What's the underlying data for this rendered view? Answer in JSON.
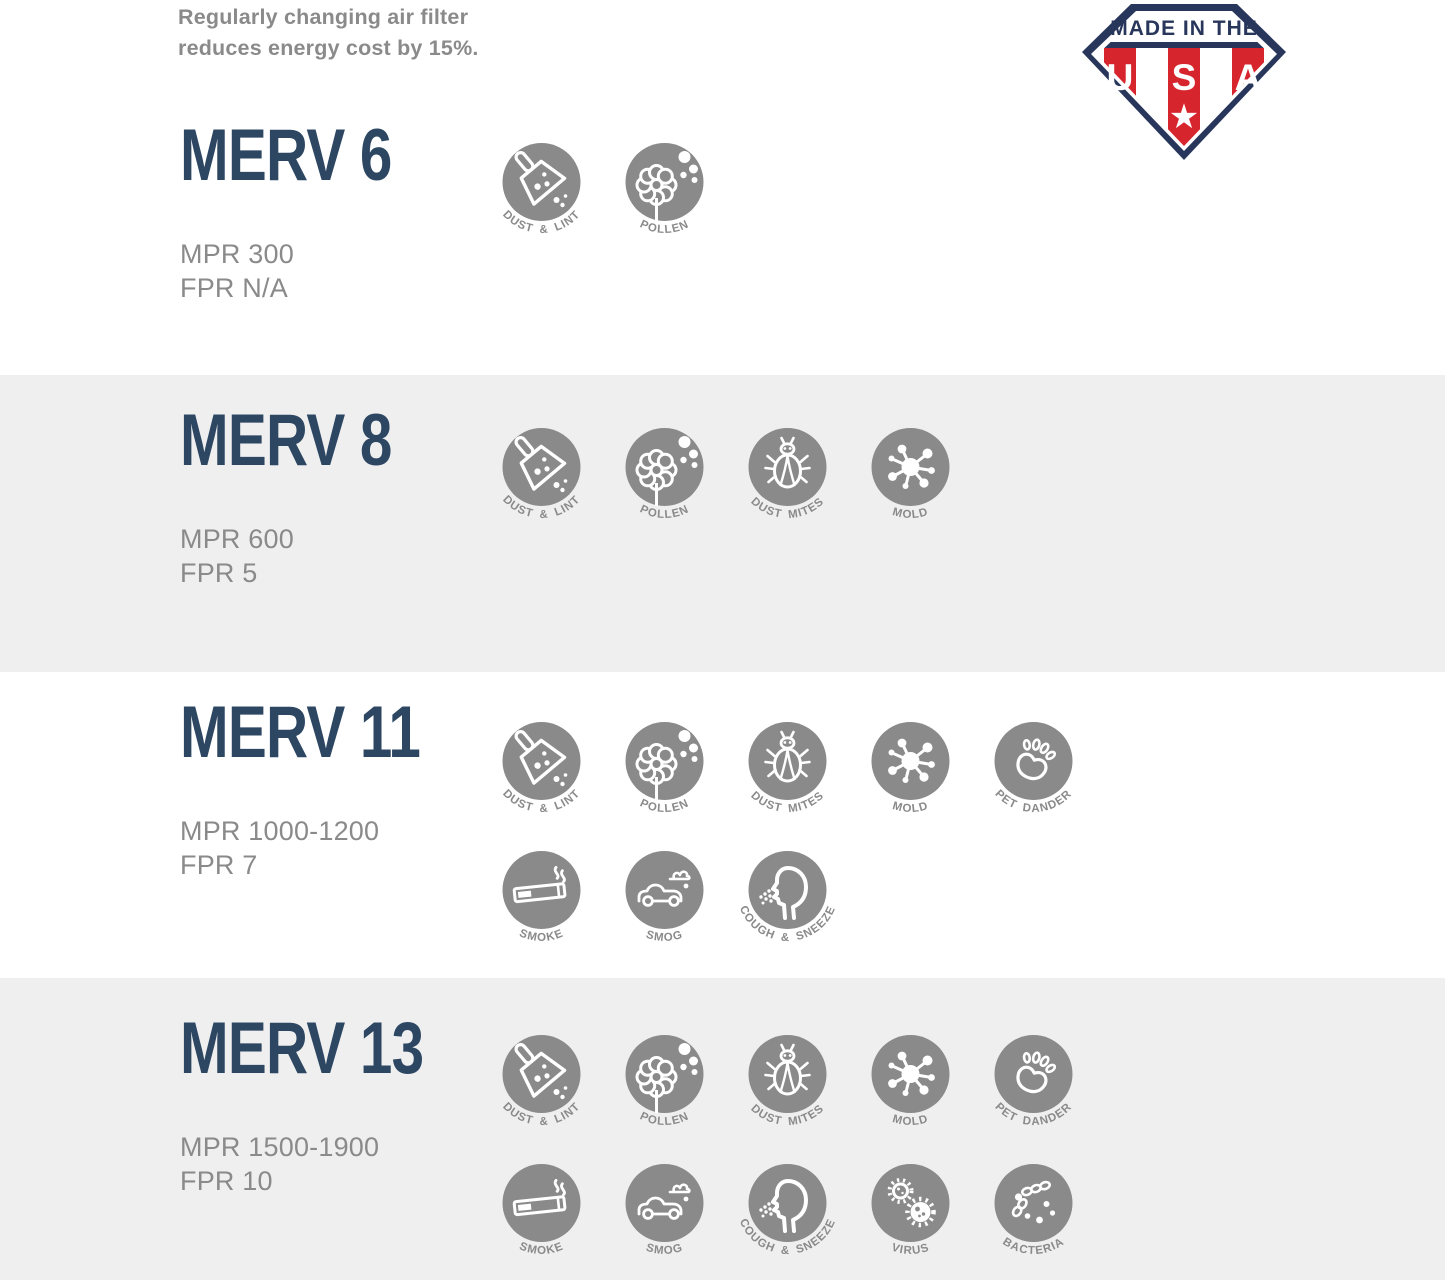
{
  "header": {
    "note_line1": "Regularly changing air filter",
    "note_line2": "reduces energy cost by 15%.",
    "badge": {
      "top_text": "MADE IN THE",
      "letters": [
        "U",
        "S",
        "A"
      ],
      "star": "★"
    }
  },
  "colors": {
    "title_navy": "#2d4763",
    "text_gray": "#8a8a8a",
    "icon_gray": "#8a8a8a",
    "band_gray": "#efefef",
    "badge_navy": "#27365a",
    "badge_red": "#d7252e",
    "white": "#ffffff"
  },
  "icons": {
    "dust-lint": {
      "label": "DUST & LINT"
    },
    "pollen": {
      "label": "POLLEN"
    },
    "dust-mites": {
      "label": "DUST MITES"
    },
    "mold": {
      "label": "MOLD"
    },
    "pet-dander": {
      "label": "PET DANDER"
    },
    "smoke": {
      "label": "SMOKE"
    },
    "smog": {
      "label": "SMOG"
    },
    "cough-sneeze": {
      "label": "COUGH & SNEEZE"
    },
    "virus": {
      "label": "VIRUS"
    },
    "bacteria": {
      "label": "BACTERIA"
    }
  },
  "sections": [
    {
      "title": "MERV 6",
      "mpr": "MPR 300",
      "fpr": "FPR N/A",
      "band": "white",
      "icon_rows": [
        [
          "dust-lint",
          "pollen"
        ]
      ]
    },
    {
      "title": "MERV 8",
      "mpr": "MPR 600",
      "fpr": "FPR 5",
      "band": "gray",
      "icon_rows": [
        [
          "dust-lint",
          "pollen",
          "dust-mites",
          "mold"
        ]
      ]
    },
    {
      "title": "MERV 11",
      "mpr": "MPR 1000-1200",
      "fpr": "FPR 7",
      "band": "white",
      "icon_rows": [
        [
          "dust-lint",
          "pollen",
          "dust-mites",
          "mold",
          "pet-dander"
        ],
        [
          "smoke",
          "smog",
          "cough-sneeze"
        ]
      ]
    },
    {
      "title": "MERV 13",
      "mpr": "MPR 1500-1900",
      "fpr": "FPR 10",
      "band": "gray",
      "icon_rows": [
        [
          "dust-lint",
          "pollen",
          "dust-mites",
          "mold",
          "pet-dander"
        ],
        [
          "smoke",
          "smog",
          "cough-sneeze",
          "virus",
          "bacteria"
        ]
      ]
    }
  ]
}
